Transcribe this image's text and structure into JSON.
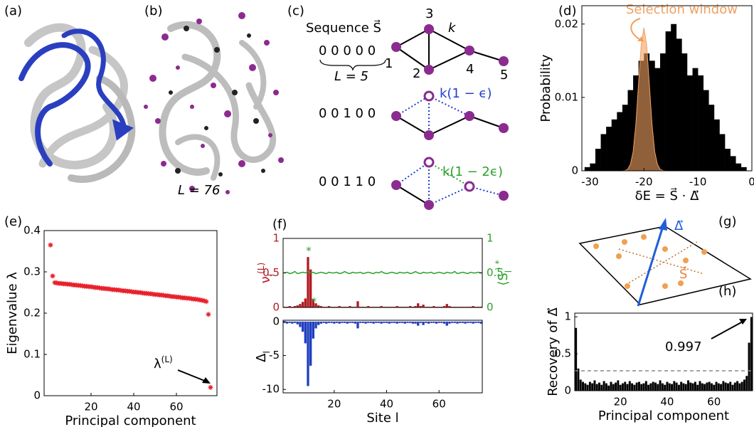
{
  "panel_labels": [
    "(a)",
    "(b)",
    "(c)",
    "(d)",
    "(e)",
    "(f)",
    "(g)",
    "(h)"
  ],
  "panel_b": {
    "length_label": "L = 76"
  },
  "panel_c": {
    "sequence_label": "Sequence S⃗",
    "sequences": [
      "0 0 0 0 0",
      "0 0 1 0 0",
      "0 0 1 1 0"
    ],
    "length_label": "L = 5",
    "nodes": [
      "1",
      "2",
      "3",
      "4",
      "5"
    ],
    "edge_label": "k",
    "weakened_labels": [
      "k(1 − ϵ)",
      "k(1 − 2ϵ)"
    ]
  },
  "panel_g": {
    "delta_label": "Δ⃗",
    "sequence_label": "S⃗"
  },
  "chart_data": [
    {
      "type": "histogram",
      "xlabel": "δE = S⃗ · Δ⃗",
      "ylabel": "Probability",
      "annotation": "Selection window",
      "bins": [
        -31,
        -30,
        -29,
        -28,
        -27,
        -26,
        -25,
        -24,
        -23,
        -22,
        -21,
        -20,
        -19,
        -18,
        -17,
        -16,
        -15,
        -14,
        -13,
        -12,
        -11,
        -10,
        -9,
        -8,
        -7,
        -6,
        -5,
        -4,
        -3,
        -2,
        -1
      ],
      "values": [
        0.0005,
        0.001,
        0.003,
        0.005,
        0.006,
        0.007,
        0.008,
        0.009,
        0.011,
        0.013,
        0.015,
        0.016,
        0.015,
        0.014,
        0.016,
        0.019,
        0.02,
        0.018,
        0.016,
        0.013,
        0.014,
        0.013,
        0.011,
        0.009,
        0.007,
        0.005,
        0.003,
        0.002,
        0.001,
        0.0005
      ],
      "color": "#000000",
      "curve": {
        "color": "#f0a060",
        "x": [
          -24,
          -23.5,
          -23,
          -22.5,
          -22,
          -21.5,
          -21,
          -20.5,
          -20,
          -19.5,
          -19,
          -18.5,
          -18,
          -17.5,
          -17,
          -16.5,
          -16
        ],
        "values": [
          0,
          4e-05,
          0.0002,
          0.0009,
          0.0026,
          0.0063,
          0.0118,
          0.0172,
          0.0195,
          0.0172,
          0.0118,
          0.0063,
          0.0026,
          0.0009,
          0.0002,
          4e-05,
          0
        ]
      },
      "xlim": [
        -31.5,
        0
      ],
      "xticks": [
        -30,
        -20,
        -10,
        0
      ],
      "ylim": [
        0,
        0.0225
      ],
      "yticks": [
        0,
        0.01,
        0.02
      ]
    },
    {
      "type": "scatter",
      "xlabel": "Principal component",
      "ylabel": "Eigenvalue λ",
      "annotation": [
        "λ",
        "(L)"
      ],
      "color": "#e8202a",
      "x": [
        1,
        2,
        3,
        4,
        5,
        6,
        7,
        8,
        9,
        10,
        11,
        12,
        13,
        14,
        15,
        16,
        17,
        18,
        19,
        20,
        21,
        22,
        23,
        24,
        25,
        26,
        27,
        28,
        29,
        30,
        31,
        32,
        33,
        34,
        35,
        36,
        37,
        38,
        39,
        40,
        41,
        42,
        43,
        44,
        45,
        46,
        47,
        48,
        49,
        50,
        51,
        52,
        53,
        54,
        55,
        56,
        57,
        58,
        59,
        60,
        61,
        62,
        63,
        64,
        65,
        66,
        67,
        68,
        69,
        70,
        71,
        72,
        73,
        74,
        75,
        76
      ],
      "values": [
        0.365,
        0.29,
        0.274,
        0.273,
        0.272,
        0.272,
        0.271,
        0.271,
        0.27,
        0.27,
        0.269,
        0.268,
        0.268,
        0.267,
        0.267,
        0.266,
        0.265,
        0.265,
        0.264,
        0.264,
        0.263,
        0.262,
        0.262,
        0.261,
        0.26,
        0.26,
        0.259,
        0.259,
        0.258,
        0.257,
        0.257,
        0.256,
        0.256,
        0.255,
        0.254,
        0.254,
        0.253,
        0.253,
        0.252,
        0.251,
        0.251,
        0.25,
        0.25,
        0.249,
        0.248,
        0.248,
        0.247,
        0.247,
        0.246,
        0.245,
        0.245,
        0.244,
        0.244,
        0.243,
        0.242,
        0.242,
        0.241,
        0.24,
        0.24,
        0.239,
        0.239,
        0.238,
        0.237,
        0.237,
        0.236,
        0.236,
        0.235,
        0.234,
        0.234,
        0.233,
        0.232,
        0.231,
        0.23,
        0.228,
        0.197,
        0.02
      ],
      "xlim": [
        -2,
        79
      ],
      "xticks": [
        20,
        40,
        60
      ],
      "ylim": [
        0,
        0.4
      ],
      "yticks": [
        0,
        0.1,
        0.2,
        0.3,
        0.4
      ]
    },
    {
      "type": "bar",
      "ylabel": [
        "ν",
        "l",
        "(L)"
      ],
      "y2label": [
        "⟨S",
        "l",
        "⟩ *"
      ],
      "annotations": [
        "*",
        "*"
      ],
      "x": [
        1,
        2,
        3,
        4,
        5,
        6,
        7,
        8,
        9,
        10,
        11,
        12,
        13,
        14,
        15,
        16,
        17,
        18,
        19,
        20,
        21,
        22,
        23,
        24,
        25,
        26,
        27,
        28,
        29,
        30,
        31,
        32,
        33,
        34,
        35,
        36,
        37,
        38,
        39,
        40,
        41,
        42,
        43,
        44,
        45,
        46,
        47,
        48,
        49,
        50,
        51,
        52,
        53,
        54,
        55,
        56,
        57,
        58,
        59,
        60,
        61,
        62,
        63,
        64,
        65,
        66,
        67,
        68,
        69,
        70,
        71,
        72,
        73,
        74,
        75,
        76
      ],
      "series": [
        {
          "color": "#b01c22",
          "values": [
            0.01,
            0.01,
            0.02,
            0.01,
            0.02,
            0.03,
            0.05,
            0.08,
            0.13,
            0.73,
            0.55,
            0.12,
            0.06,
            0.03,
            0.02,
            0.01,
            0.01,
            0.02,
            0.01,
            0.01,
            0.01,
            0.02,
            0.01,
            0.01,
            0.01,
            0.02,
            0.01,
            0.01,
            0.09,
            0.01,
            0.01,
            0.01,
            0.02,
            0.01,
            0.01,
            0.01,
            0.01,
            0.02,
            0.01,
            0.01,
            0.01,
            0.01,
            0.01,
            0.02,
            0.01,
            0.01,
            0.01,
            0.01,
            0.02,
            0.01,
            0.02,
            0.06,
            0.02,
            0.04,
            0.01,
            0.01,
            0.01,
            0.02,
            0.01,
            0.01,
            0.01,
            0.02,
            0.05,
            0.02,
            0.01,
            0.01,
            0.01,
            0.01,
            0.01,
            0.01,
            0.01,
            0.01,
            0.02,
            0.01,
            0.01,
            0.01
          ]
        },
        {
          "color": "#2ca02c",
          "axis": "y2",
          "values": [
            0.5,
            0.51,
            0.49,
            0.5,
            0.52,
            0.49,
            0.5,
            0.51,
            0.5,
            0.52,
            0.5,
            0.51,
            0.49,
            0.5,
            0.51,
            0.5,
            0.49,
            0.51,
            0.5,
            0.5,
            0.51,
            0.49,
            0.5,
            0.52,
            0.5,
            0.49,
            0.51,
            0.5,
            0.5,
            0.51,
            0.49,
            0.5,
            0.51,
            0.5,
            0.49,
            0.51,
            0.5,
            0.52,
            0.5,
            0.49,
            0.5,
            0.51,
            0.5,
            0.49,
            0.51,
            0.5,
            0.5,
            0.51,
            0.49,
            0.5,
            0.52,
            0.5,
            0.49,
            0.51,
            0.5,
            0.5,
            0.51,
            0.49,
            0.5,
            0.51,
            0.5,
            0.49,
            0.51,
            0.5,
            0.5,
            0.52,
            0.49,
            0.5,
            0.51,
            0.5,
            0.49,
            0.51,
            0.5,
            0.5,
            0.51,
            0.5
          ]
        }
      ],
      "xlim": [
        0.5,
        76.5
      ],
      "ylim": [
        0,
        1
      ],
      "yticks": [
        0,
        0.5,
        1
      ],
      "y2lim": [
        0,
        1
      ],
      "y2ticks": [
        0,
        0.5,
        1
      ]
    },
    {
      "type": "bar",
      "xlabel": "Site l",
      "ylabel": [
        "Δ",
        "l"
      ],
      "color": "#1f3fbf",
      "x": [
        1,
        2,
        3,
        4,
        5,
        6,
        7,
        8,
        9,
        10,
        11,
        12,
        13,
        14,
        15,
        16,
        17,
        18,
        19,
        20,
        21,
        22,
        23,
        24,
        25,
        26,
        27,
        28,
        29,
        30,
        31,
        32,
        33,
        34,
        35,
        36,
        37,
        38,
        39,
        40,
        41,
        42,
        43,
        44,
        45,
        46,
        47,
        48,
        49,
        50,
        51,
        52,
        53,
        54,
        55,
        56,
        57,
        58,
        59,
        60,
        61,
        62,
        63,
        64,
        65,
        66,
        67,
        68,
        69,
        70,
        71,
        72,
        73,
        74,
        75,
        76
      ],
      "values": [
        -0.2,
        -0.3,
        -0.2,
        -0.3,
        -0.2,
        -0.4,
        -0.8,
        -1.5,
        -3.2,
        -9.5,
        -6.5,
        -2.5,
        -1,
        -0.5,
        -0.3,
        -0.2,
        -0.3,
        -0.2,
        -0.2,
        -0.3,
        -0.2,
        -0.3,
        -0.2,
        -0.2,
        -0.3,
        -0.2,
        -0.2,
        -0.3,
        -1,
        -0.2,
        -0.2,
        -0.3,
        -0.2,
        -0.2,
        -0.3,
        -0.2,
        -0.2,
        -0.3,
        -0.2,
        -0.2,
        -0.3,
        -0.2,
        -0.2,
        -0.3,
        -0.2,
        -0.2,
        -0.3,
        -0.2,
        -0.2,
        -0.3,
        -0.3,
        -0.6,
        -0.2,
        -0.5,
        -0.2,
        -0.3,
        -0.2,
        -0.2,
        -0.3,
        -0.2,
        -0.2,
        -0.3,
        -0.6,
        -0.3,
        -0.2,
        -0.2,
        -0.3,
        -0.2,
        -0.2,
        -0.3,
        -0.2,
        -0.2,
        -0.3,
        -0.2,
        -0.2,
        -0.3
      ],
      "xlim": [
        0.5,
        76.5
      ],
      "xticks": [
        20,
        40,
        60
      ],
      "ylim": [
        -10.5,
        0.2
      ],
      "yticks": [
        -10,
        -5,
        0
      ]
    },
    {
      "type": "bar",
      "xlabel": "Principal component",
      "ylabel": "Recovery of Δ⃗",
      "color": "#000000",
      "hline": 0.27,
      "x": [
        1,
        2,
        3,
        4,
        5,
        6,
        7,
        8,
        9,
        10,
        11,
        12,
        13,
        14,
        15,
        16,
        17,
        18,
        19,
        20,
        21,
        22,
        23,
        24,
        25,
        26,
        27,
        28,
        29,
        30,
        31,
        32,
        33,
        34,
        35,
        36,
        37,
        38,
        39,
        40,
        41,
        42,
        43,
        44,
        45,
        46,
        47,
        48,
        49,
        50,
        51,
        52,
        53,
        54,
        55,
        56,
        57,
        58,
        59,
        60,
        61,
        62,
        63,
        64,
        65,
        66,
        67,
        68,
        69,
        70,
        71,
        72,
        73,
        74,
        75,
        76
      ],
      "values": [
        0.85,
        0.3,
        0.15,
        0.12,
        0.1,
        0.08,
        0.12,
        0.1,
        0.14,
        0.09,
        0.11,
        0.08,
        0.13,
        0.1,
        0.07,
        0.12,
        0.09,
        0.11,
        0.14,
        0.08,
        0.1,
        0.12,
        0.09,
        0.13,
        0.1,
        0.08,
        0.11,
        0.12,
        0.09,
        0.1,
        0.13,
        0.08,
        0.1,
        0.12,
        0.11,
        0.09,
        0.14,
        0.1,
        0.08,
        0.12,
        0.1,
        0.09,
        0.13,
        0.11,
        0.08,
        0.12,
        0.1,
        0.09,
        0.14,
        0.11,
        0.1,
        0.12,
        0.08,
        0.13,
        0.1,
        0.09,
        0.11,
        0.12,
        0.1,
        0.08,
        0.12,
        0.1,
        0.09,
        0.13,
        0.11,
        0.1,
        0.12,
        0.08,
        0.11,
        0.13,
        0.1,
        0.12,
        0.15,
        0.2,
        0.65,
        0.997
      ],
      "xlim": [
        0.5,
        76.5
      ],
      "xticks": [
        20,
        40,
        60
      ],
      "ylim": [
        0,
        1.05
      ],
      "yticks": [
        0,
        0.5,
        1
      ]
    }
  ]
}
